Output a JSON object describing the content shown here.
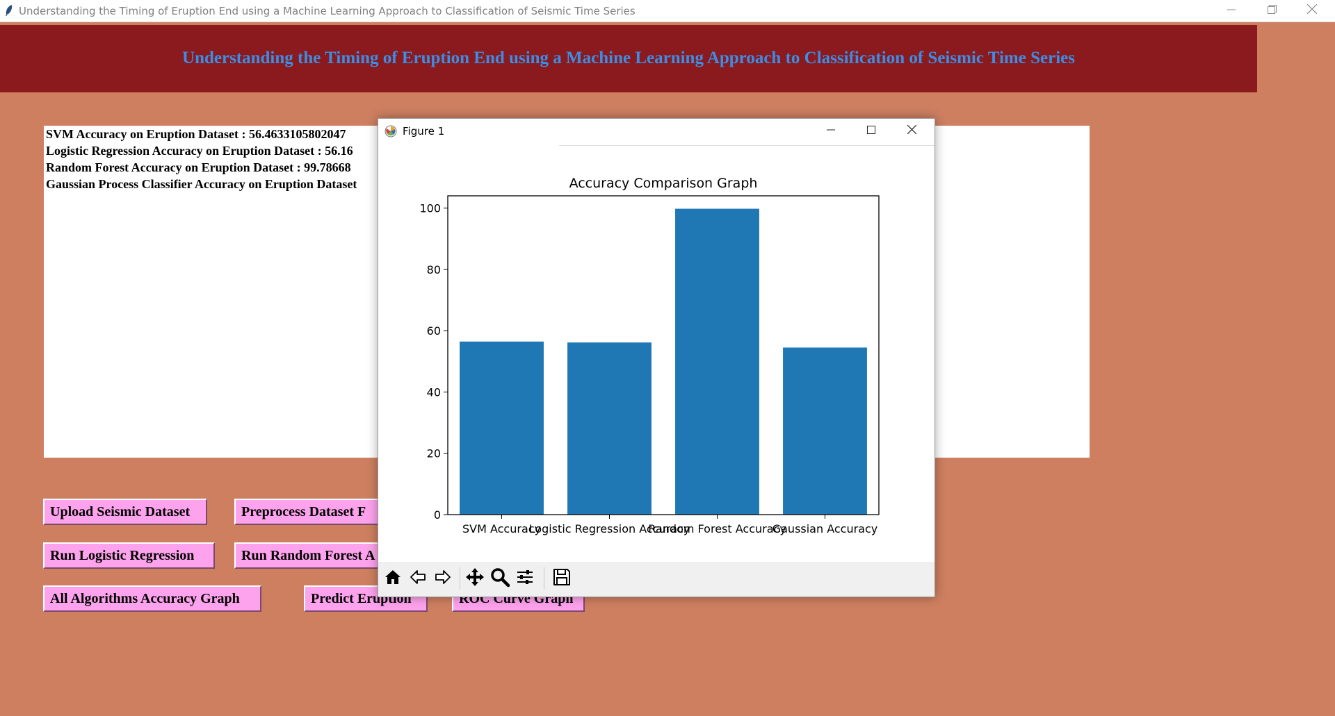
{
  "window": {
    "title": "Understanding the Timing of Eruption End using a Machine Learning Approach to Classification of Seismic Time Series"
  },
  "header": {
    "title": "Understanding the Timing of Eruption End using a Machine Learning Approach to Classification of Seismic Time Series"
  },
  "output": {
    "lines": [
      "SVM Accuracy on Eruption Dataset : 56.4633105802047",
      "Logistic Regression Accuracy on Eruption Dataset : 56.16",
      "Random Forest Accuracy on Eruption Dataset : 99.78668",
      "Gaussian Process Classifier Accuracy on Eruption Dataset"
    ]
  },
  "buttons": {
    "upload": "Upload Seismic Dataset",
    "preprocess": "Preprocess Dataset F",
    "logistic": "Run Logistic Regression",
    "random_forest": "Run Random Forest A",
    "accuracy_graph": "All Algorithms Accuracy Graph",
    "predict": "Predict Eruption",
    "roc": "ROC Curve Graph"
  },
  "figure": {
    "window_title": "Figure 1"
  },
  "colors": {
    "background": "#cd7f60",
    "banner": "#8a1a1d",
    "banner_text": "#3a8ee6",
    "button": "#fda2ec",
    "bar": "#1f77b4"
  },
  "icons": {
    "titlebar": [
      "feather-icon",
      "minimize-icon",
      "restore-icon",
      "close-icon"
    ],
    "toolbar": [
      "home-icon",
      "back-arrow-icon",
      "forward-arrow-icon",
      "pan-icon",
      "zoom-icon",
      "configure-subplots-icon",
      "save-icon"
    ]
  },
  "chart_data": {
    "type": "bar",
    "title": "Accuracy Comparison Graph",
    "categories": [
      "SVM Accuracy",
      "Logistic Regression Accuracy",
      "Random Forest Accuracy",
      "Gaussian Accuracy"
    ],
    "values": [
      56.46,
      56.16,
      99.79,
      54.5
    ],
    "ylim": [
      0,
      104
    ],
    "yticks": [
      0,
      20,
      40,
      60,
      80,
      100
    ],
    "xlabel": "",
    "ylabel": "",
    "grid": false,
    "legend": false
  }
}
